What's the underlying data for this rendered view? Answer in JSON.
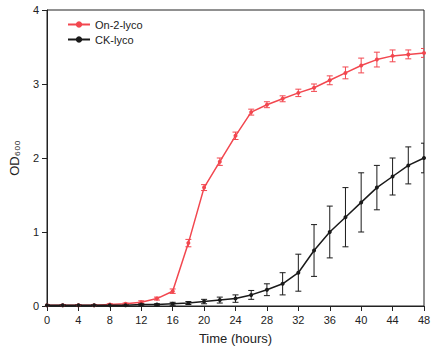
{
  "chart_data": {
    "type": "line",
    "x_label": "Time (hours)",
    "y_label": "OD₆₀₀",
    "x": [
      0,
      2,
      4,
      6,
      8,
      10,
      12,
      14,
      16,
      18,
      20,
      22,
      24,
      26,
      28,
      30,
      32,
      34,
      36,
      38,
      40,
      42,
      44,
      46,
      48
    ],
    "series": [
      {
        "name": "On-2-lyco",
        "color": "#f2474f",
        "marker": "circle",
        "line_style": "solid",
        "values": [
          0.01,
          0.01,
          0.01,
          0.01,
          0.02,
          0.03,
          0.05,
          0.1,
          0.2,
          0.85,
          1.6,
          1.95,
          2.3,
          2.62,
          2.72,
          2.8,
          2.88,
          2.95,
          3.05,
          3.15,
          3.25,
          3.33,
          3.38,
          3.4,
          3.42
        ],
        "errors": [
          0.01,
          0.01,
          0.01,
          0.01,
          0.01,
          0.01,
          0.02,
          0.02,
          0.03,
          0.05,
          0.04,
          0.05,
          0.05,
          0.04,
          0.04,
          0.04,
          0.05,
          0.05,
          0.06,
          0.08,
          0.1,
          0.1,
          0.08,
          0.06,
          0.06
        ]
      },
      {
        "name": "CK-lyco",
        "color": "#1a1a1a",
        "marker": "circle",
        "line_style": "solid",
        "values": [
          0.01,
          0.01,
          0.01,
          0.01,
          0.01,
          0.01,
          0.02,
          0.02,
          0.03,
          0.04,
          0.06,
          0.08,
          0.1,
          0.15,
          0.22,
          0.3,
          0.45,
          0.75,
          1.0,
          1.2,
          1.4,
          1.6,
          1.75,
          1.9,
          2.0
        ],
        "errors": [
          0.01,
          0.01,
          0.01,
          0.01,
          0.01,
          0.01,
          0.01,
          0.01,
          0.02,
          0.02,
          0.03,
          0.04,
          0.05,
          0.06,
          0.08,
          0.15,
          0.25,
          0.35,
          0.35,
          0.4,
          0.4,
          0.3,
          0.25,
          0.25,
          0.2
        ]
      }
    ],
    "xlim": [
      0,
      48
    ],
    "xticks": [
      0,
      4,
      8,
      12,
      16,
      20,
      24,
      28,
      32,
      36,
      40,
      44,
      48
    ],
    "ylim": [
      0,
      4
    ],
    "yticks": [
      0,
      1,
      2,
      3,
      4
    ],
    "grid": false,
    "legend": "upper left"
  }
}
